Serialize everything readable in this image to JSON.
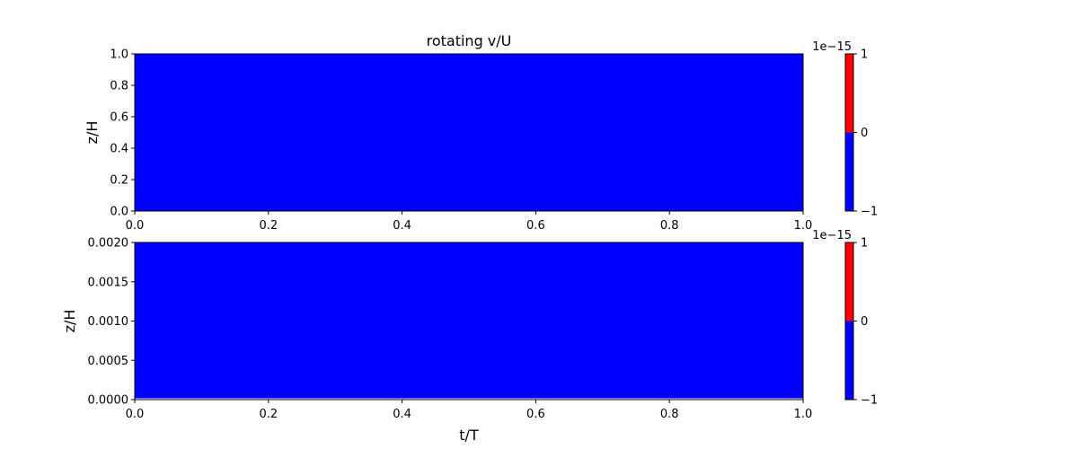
{
  "chart_data": [
    {
      "type": "heatmap",
      "title": "rotating v/U",
      "xlabel": "",
      "ylabel": "z/H",
      "xlim": [
        0.0,
        1.0
      ],
      "ylim": [
        0.0,
        1.0
      ],
      "x_ticks": [
        "0.0",
        "0.2",
        "0.4",
        "0.6",
        "0.8",
        "1.0"
      ],
      "y_ticks": [
        "0.0",
        "0.2",
        "0.4",
        "0.6",
        "0.8",
        "1.0"
      ],
      "field_value": -1e-15,
      "fill_color": "#0000ff",
      "gap_fraction": 0,
      "colorbar": {
        "offset_label": "1e−15",
        "ticks": [
          "−1",
          "0",
          "1"
        ],
        "tick_values": [
          -1,
          0,
          1
        ],
        "levels": [
          {
            "from": -1,
            "to": 0,
            "color": "#0000ff"
          },
          {
            "from": 0,
            "to": 1,
            "color": "#ff0000"
          }
        ]
      }
    },
    {
      "type": "heatmap",
      "title": "",
      "xlabel": "t/T",
      "ylabel": "z/H",
      "xlim": [
        0.0,
        1.0
      ],
      "ylim": [
        0.0,
        0.002
      ],
      "x_ticks": [
        "0.0",
        "0.2",
        "0.4",
        "0.6",
        "0.8",
        "1.0"
      ],
      "y_ticks": [
        "0.0000",
        "0.0005",
        "0.0010",
        "0.0015",
        "0.0020"
      ],
      "field_value": -1e-15,
      "fill_color": "#0000ff",
      "gap_fraction": 0.008,
      "colorbar": {
        "offset_label": "1e−15",
        "ticks": [
          "−1",
          "0",
          "1"
        ],
        "tick_values": [
          -1,
          0,
          1
        ],
        "levels": [
          {
            "from": -1,
            "to": 0,
            "color": "#0000ff"
          },
          {
            "from": 0,
            "to": 1,
            "color": "#ff0000"
          }
        ]
      }
    }
  ]
}
